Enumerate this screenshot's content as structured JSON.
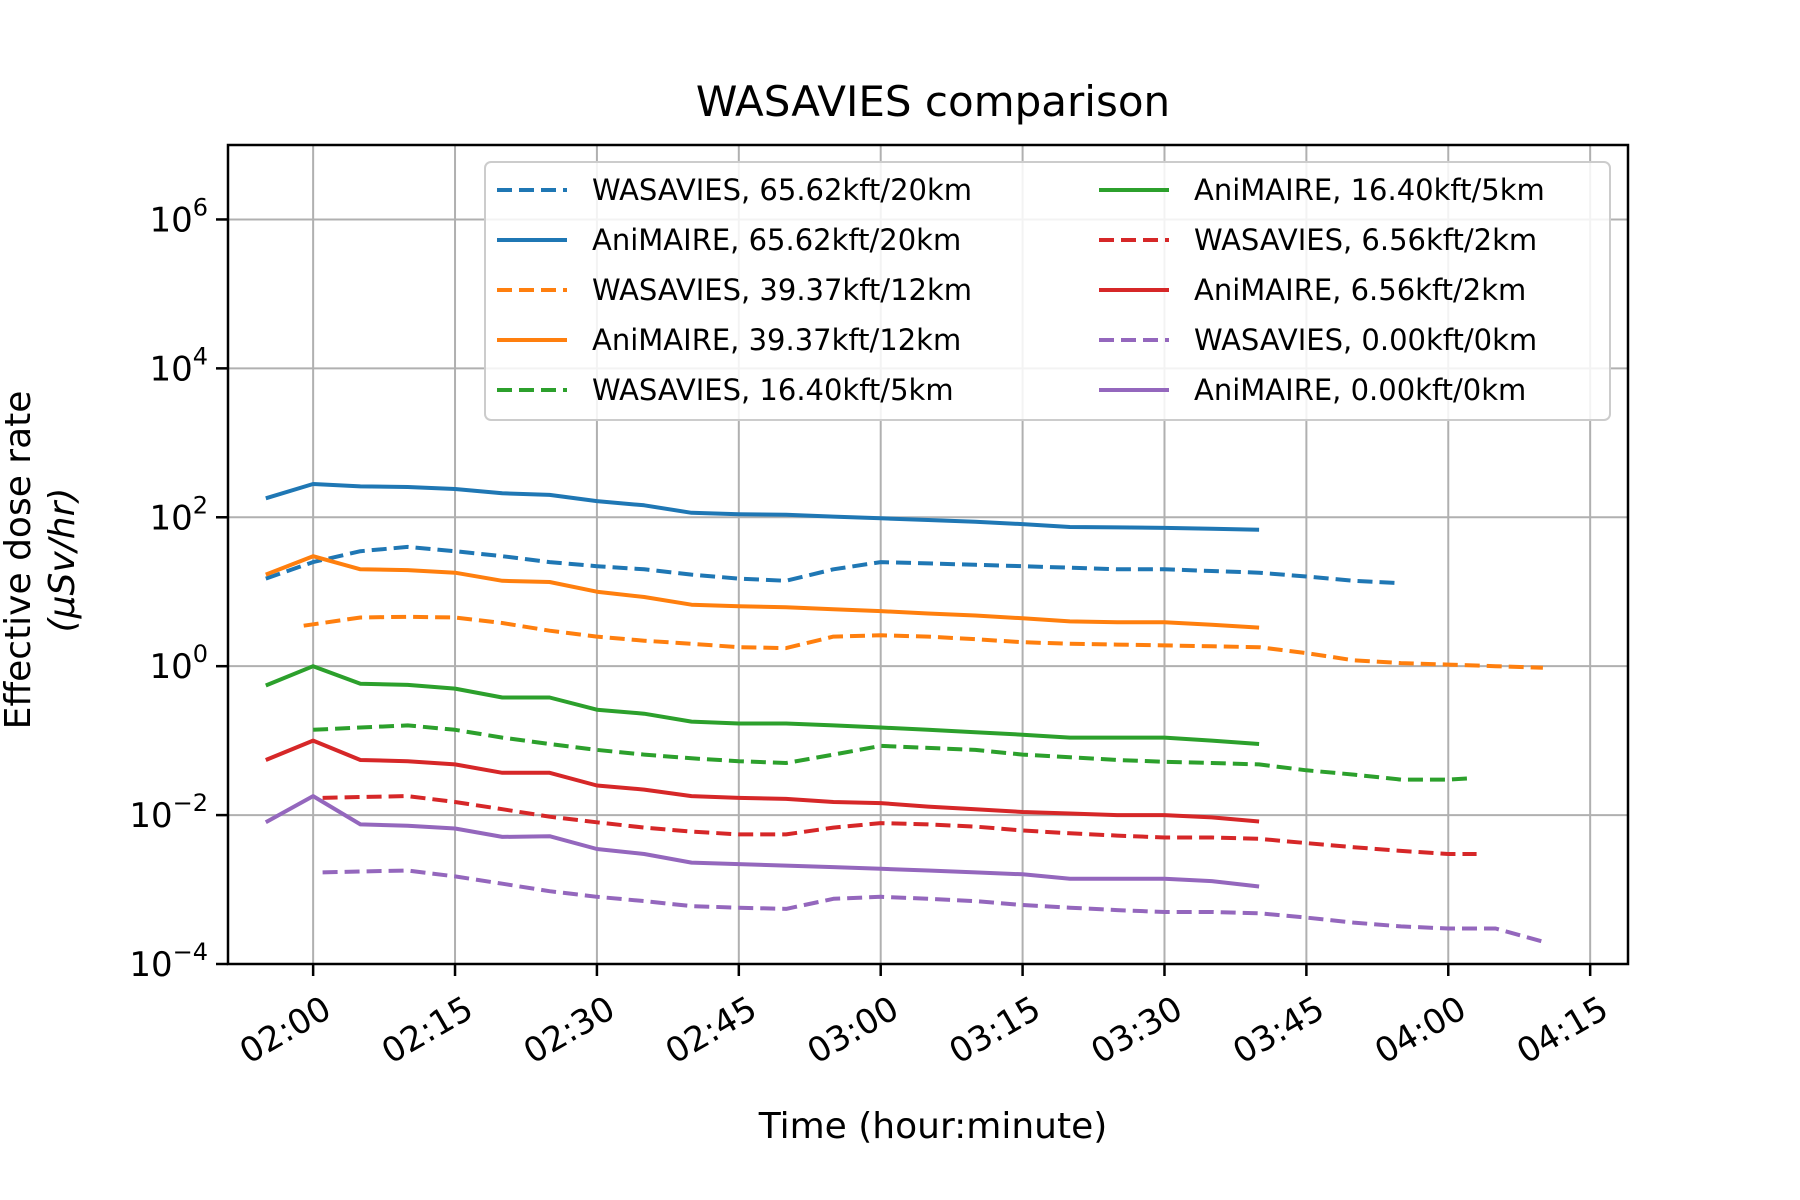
{
  "chart_data": {
    "type": "line",
    "title": "WASAVIES comparison",
    "xlabel": "Time (hour:minute)",
    "ylabel_line1": "Effective dose rate",
    "ylabel_line2": "(μSv/hr)",
    "x_unit": "hour:minute",
    "x_ticks": [
      "02:00",
      "02:15",
      "02:30",
      "02:45",
      "03:00",
      "03:15",
      "03:30",
      "03:45",
      "04:00",
      "04:15"
    ],
    "xlim": [
      "01:51",
      "04:19"
    ],
    "y_scale": "log",
    "ylim": [
      0.0001,
      10000000
    ],
    "y_ticks": [
      {
        "value": 0.0001,
        "base": "10",
        "exp": "−4"
      },
      {
        "value": 0.01,
        "base": "10",
        "exp": "−2"
      },
      {
        "value": 1,
        "base": "10",
        "exp": "0"
      },
      {
        "value": 100,
        "base": "10",
        "exp": "2"
      },
      {
        "value": 10000,
        "base": "10",
        "exp": "4"
      },
      {
        "value": 1000000,
        "base": "10",
        "exp": "6"
      }
    ],
    "grid": true,
    "legend_position": "top-right",
    "legend_columns": 2,
    "series": [
      {
        "name": "WASAVIES, 65.62kft/20km",
        "color": "#1f77b4",
        "dash": true,
        "x": [
          "01:55",
          "02:00",
          "02:05",
          "02:10",
          "02:15",
          "02:20",
          "02:25",
          "02:30",
          "02:35",
          "02:40",
          "02:45",
          "02:50",
          "02:55",
          "03:00",
          "03:05",
          "03:10",
          "03:15",
          "03:20",
          "03:25",
          "03:30",
          "03:35",
          "03:40",
          "03:45",
          "03:50",
          "03:55"
        ],
        "y": [
          15,
          25,
          35,
          40,
          35,
          30,
          25,
          22,
          20,
          17,
          15,
          14,
          20,
          25,
          24,
          23,
          22,
          21,
          20,
          20,
          19,
          18,
          16,
          14,
          13
        ]
      },
      {
        "name": "AniMAIRE, 65.62kft/20km",
        "color": "#1f77b4",
        "dash": false,
        "x": [
          "01:55",
          "02:00",
          "02:05",
          "02:10",
          "02:15",
          "02:20",
          "02:25",
          "02:30",
          "02:35",
          "02:40",
          "02:45",
          "02:50",
          "02:55",
          "03:00",
          "03:05",
          "03:10",
          "03:15",
          "03:20",
          "03:25",
          "03:30",
          "03:35",
          "03:40"
        ],
        "y": [
          180,
          280,
          260,
          255,
          240,
          210,
          200,
          165,
          145,
          115,
          110,
          108,
          102,
          97,
          92,
          87,
          81,
          74,
          73,
          72,
          70,
          68
        ]
      },
      {
        "name": "WASAVIES, 39.37kft/12km",
        "color": "#ff7f0e",
        "dash": true,
        "x": [
          "01:59",
          "02:05",
          "02:10",
          "02:15",
          "02:20",
          "02:25",
          "02:30",
          "02:35",
          "02:40",
          "02:45",
          "02:50",
          "02:55",
          "03:00",
          "03:05",
          "03:10",
          "03:15",
          "03:20",
          "03:25",
          "03:30",
          "03:35",
          "03:40",
          "03:45",
          "03:50",
          "03:55",
          "04:00",
          "04:05",
          "04:10"
        ],
        "y": [
          3.5,
          4.5,
          4.6,
          4.5,
          3.8,
          3.0,
          2.5,
          2.2,
          2.0,
          1.8,
          1.75,
          2.5,
          2.6,
          2.5,
          2.3,
          2.1,
          2.0,
          1.95,
          1.9,
          1.85,
          1.8,
          1.5,
          1.2,
          1.1,
          1.05,
          1.0,
          0.95
        ]
      },
      {
        "name": "AniMAIRE, 39.37kft/12km",
        "color": "#ff7f0e",
        "dash": false,
        "x": [
          "01:55",
          "02:00",
          "02:05",
          "02:10",
          "02:15",
          "02:20",
          "02:25",
          "02:30",
          "02:35",
          "02:40",
          "02:45",
          "02:50",
          "02:55",
          "03:00",
          "03:05",
          "03:10",
          "03:15",
          "03:20",
          "03:25",
          "03:30",
          "03:35",
          "03:40"
        ],
        "y": [
          17,
          30,
          20,
          19.5,
          18,
          14,
          13.5,
          10,
          8.5,
          6.7,
          6.4,
          6.2,
          5.8,
          5.5,
          5.1,
          4.8,
          4.4,
          4.0,
          3.9,
          3.9,
          3.6,
          3.3
        ]
      },
      {
        "name": "WASAVIES, 16.40kft/5km",
        "color": "#2ca02c",
        "dash": true,
        "x": [
          "02:00",
          "02:05",
          "02:10",
          "02:15",
          "02:20",
          "02:25",
          "02:30",
          "02:35",
          "02:40",
          "02:45",
          "02:50",
          "02:55",
          "03:00",
          "03:05",
          "03:10",
          "03:15",
          "03:20",
          "03:25",
          "03:30",
          "03:35",
          "03:40",
          "03:45",
          "03:50",
          "03:55",
          "04:00",
          "04:02"
        ],
        "y": [
          0.14,
          0.15,
          0.16,
          0.14,
          0.11,
          0.09,
          0.075,
          0.065,
          0.058,
          0.053,
          0.05,
          0.065,
          0.085,
          0.08,
          0.075,
          0.065,
          0.06,
          0.055,
          0.052,
          0.05,
          0.048,
          0.04,
          0.035,
          0.03,
          0.03,
          0.031
        ]
      },
      {
        "name": "AniMAIRE, 16.40kft/5km",
        "color": "#2ca02c",
        "dash": false,
        "x": [
          "01:55",
          "02:00",
          "02:05",
          "02:10",
          "02:15",
          "02:20",
          "02:25",
          "02:30",
          "02:35",
          "02:40",
          "02:45",
          "02:50",
          "02:55",
          "03:00",
          "03:05",
          "03:10",
          "03:15",
          "03:20",
          "03:25",
          "03:30",
          "03:35",
          "03:40"
        ],
        "y": [
          0.55,
          1.0,
          0.58,
          0.56,
          0.5,
          0.38,
          0.38,
          0.26,
          0.23,
          0.18,
          0.17,
          0.17,
          0.16,
          0.15,
          0.14,
          0.13,
          0.12,
          0.11,
          0.11,
          0.11,
          0.1,
          0.09
        ]
      },
      {
        "name": "WASAVIES, 6.56kft/2km",
        "color": "#d62728",
        "dash": true,
        "x": [
          "02:01",
          "02:05",
          "02:10",
          "02:15",
          "02:20",
          "02:25",
          "02:30",
          "02:35",
          "02:40",
          "02:45",
          "02:50",
          "02:55",
          "03:00",
          "03:05",
          "03:10",
          "03:15",
          "03:20",
          "03:25",
          "03:30",
          "03:35",
          "03:40",
          "03:45",
          "03:50",
          "03:55",
          "04:00",
          "04:03"
        ],
        "y": [
          0.017,
          0.0175,
          0.018,
          0.015,
          0.012,
          0.0095,
          0.008,
          0.0068,
          0.006,
          0.0055,
          0.0055,
          0.0068,
          0.0078,
          0.0075,
          0.007,
          0.0062,
          0.0057,
          0.0053,
          0.005,
          0.005,
          0.0048,
          0.0042,
          0.0037,
          0.0033,
          0.003,
          0.003
        ]
      },
      {
        "name": "AniMAIRE, 6.56kft/2km",
        "color": "#d62728",
        "dash": false,
        "x": [
          "01:55",
          "02:00",
          "02:05",
          "02:10",
          "02:15",
          "02:20",
          "02:25",
          "02:30",
          "02:35",
          "02:40",
          "02:45",
          "02:50",
          "02:55",
          "03:00",
          "03:05",
          "03:10",
          "03:15",
          "03:20",
          "03:25",
          "03:30",
          "03:35",
          "03:40"
        ],
        "y": [
          0.055,
          0.1,
          0.055,
          0.053,
          0.048,
          0.037,
          0.037,
          0.025,
          0.022,
          0.018,
          0.017,
          0.0165,
          0.015,
          0.0145,
          0.013,
          0.012,
          0.011,
          0.0105,
          0.01,
          0.01,
          0.0093,
          0.0082
        ]
      },
      {
        "name": "WASAVIES, 0.00kft/0km",
        "color": "#9467bd",
        "dash": true,
        "x": [
          "02:01",
          "02:05",
          "02:10",
          "02:15",
          "02:20",
          "02:25",
          "02:30",
          "02:35",
          "02:40",
          "02:45",
          "02:50",
          "02:55",
          "03:00",
          "03:05",
          "03:10",
          "03:15",
          "03:20",
          "03:25",
          "03:30",
          "03:35",
          "03:40",
          "03:45",
          "03:50",
          "03:55",
          "04:00",
          "04:05",
          "04:10"
        ],
        "y": [
          0.0017,
          0.00175,
          0.0018,
          0.0015,
          0.0012,
          0.00095,
          0.0008,
          0.0007,
          0.0006,
          0.00057,
          0.00055,
          0.00075,
          0.0008,
          0.00075,
          0.0007,
          0.00062,
          0.00057,
          0.00053,
          0.0005,
          0.0005,
          0.00048,
          0.00042,
          0.00036,
          0.00032,
          0.0003,
          0.0003,
          0.0002
        ]
      },
      {
        "name": "AniMAIRE, 0.00kft/0km",
        "color": "#9467bd",
        "dash": false,
        "x": [
          "01:55",
          "02:00",
          "02:05",
          "02:10",
          "02:15",
          "02:20",
          "02:25",
          "02:30",
          "02:35",
          "02:40",
          "02:45",
          "02:50",
          "02:55",
          "03:00",
          "03:05",
          "03:10",
          "03:15",
          "03:20",
          "03:25",
          "03:30",
          "03:35",
          "03:40"
        ],
        "y": [
          0.008,
          0.018,
          0.0075,
          0.0072,
          0.0066,
          0.0051,
          0.0052,
          0.0035,
          0.003,
          0.0023,
          0.0022,
          0.0021,
          0.002,
          0.0019,
          0.0018,
          0.0017,
          0.0016,
          0.0014,
          0.0014,
          0.0014,
          0.0013,
          0.0011
        ]
      }
    ]
  }
}
